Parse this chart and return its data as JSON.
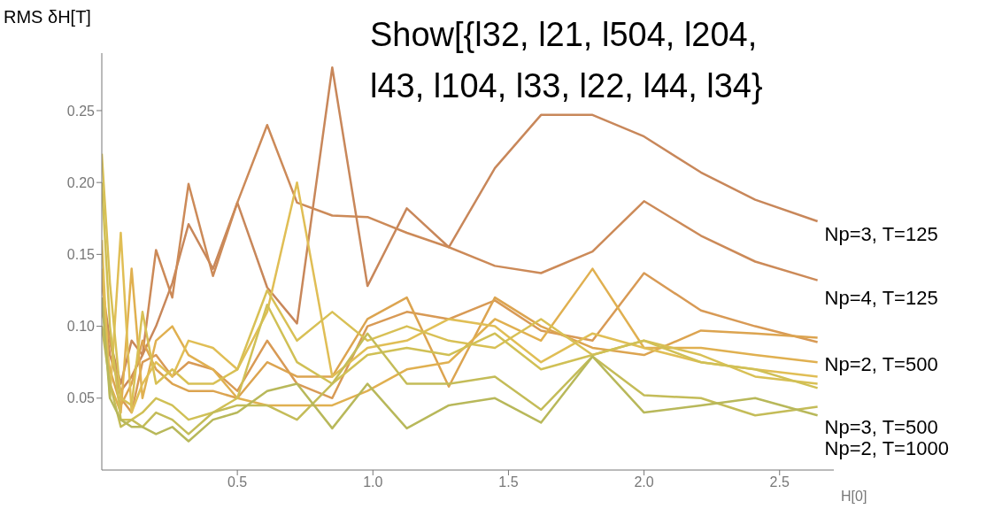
{
  "chart_data": {
    "type": "line",
    "title": "Show[{l32, l21, l504, l204,\nl43, l104, l33, l22, l44, l34}",
    "ylabel": "RMS δH[T]",
    "xlabel": "H[0]",
    "x": [
      0,
      0.03,
      0.07,
      0.11,
      0.15,
      0.2,
      0.26,
      0.32,
      0.41,
      0.5,
      0.61,
      0.72,
      0.85,
      0.98,
      1.125,
      1.28,
      1.45,
      1.62,
      1.81,
      2.0,
      2.21,
      2.41,
      2.64
    ],
    "series": [
      {
        "name": "Np=3, T=125",
        "color": "#c8875a",
        "values": [
          0.13,
          0.09,
          0.06,
          0.09,
          0.08,
          0.1,
          0.13,
          0.171,
          0.14,
          0.186,
          0.127,
          0.102,
          0.28,
          0.128,
          0.182,
          0.155,
          0.21,
          0.247,
          0.247,
          0.232,
          0.207,
          0.188,
          0.173
        ]
      },
      {
        "name": "Np=4, T=125",
        "color": "#cc8a58",
        "values": [
          0.12,
          0.08,
          0.055,
          0.065,
          0.08,
          0.153,
          0.12,
          0.199,
          0.135,
          0.186,
          0.24,
          0.186,
          0.177,
          0.176,
          0.165,
          0.155,
          0.142,
          0.137,
          0.152,
          0.187,
          0.163,
          0.145,
          0.132
        ]
      },
      {
        "name": "Np=2, T=500",
        "color": "#d89a55",
        "values": [
          0.11,
          0.09,
          0.05,
          0.04,
          0.075,
          0.08,
          0.065,
          0.075,
          0.07,
          0.055,
          0.09,
          0.06,
          0.05,
          0.1,
          0.11,
          0.105,
          0.118,
          0.097,
          0.09,
          0.137,
          0.111,
          0.1,
          0.089
        ]
      },
      {
        "color": "#dca450",
        "values": [
          0.1,
          0.07,
          0.045,
          0.06,
          0.09,
          0.07,
          0.06,
          0.055,
          0.055,
          0.05,
          0.075,
          0.065,
          0.065,
          0.105,
          0.12,
          0.058,
          0.12,
          0.1,
          0.085,
          0.08,
          0.097,
          0.095,
          0.092
        ]
      },
      {
        "color": "#e0b050",
        "values": [
          0.14,
          0.06,
          0.04,
          0.14,
          0.05,
          0.09,
          0.1,
          0.08,
          0.07,
          0.05,
          0.045,
          0.045,
          0.045,
          0.055,
          0.07,
          0.075,
          0.105,
          0.09,
          0.14,
          0.085,
          0.085,
          0.08,
          0.075
        ]
      },
      {
        "color": "#e0be55",
        "values": [
          0.16,
          0.05,
          0.165,
          0.04,
          0.06,
          0.075,
          0.065,
          0.09,
          0.085,
          0.07,
          0.11,
          0.2,
          0.065,
          0.085,
          0.09,
          0.105,
          0.1,
          0.075,
          0.095,
          0.085,
          0.075,
          0.07,
          0.065
        ]
      },
      {
        "color": "#d8c055",
        "values": [
          0.22,
          0.13,
          0.05,
          0.045,
          0.11,
          0.06,
          0.07,
          0.06,
          0.06,
          0.07,
          0.125,
          0.09,
          0.11,
          0.09,
          0.1,
          0.09,
          0.085,
          0.105,
          0.08,
          0.09,
          0.08,
          0.065,
          0.06
        ]
      },
      {
        "color": "#d0c055",
        "values": [
          0.2,
          0.1,
          0.035,
          0.035,
          0.04,
          0.05,
          0.045,
          0.035,
          0.04,
          0.05,
          0.115,
          0.075,
          0.06,
          0.08,
          0.085,
          0.08,
          0.095,
          0.07,
          0.08,
          0.09,
          0.075,
          0.07,
          0.057
        ]
      },
      {
        "name": "Np=3, T=500",
        "color": "#c4bc58",
        "values": [
          0.1,
          0.06,
          0.03,
          0.035,
          0.03,
          0.04,
          0.035,
          0.025,
          0.04,
          0.045,
          0.045,
          0.035,
          0.06,
          0.095,
          0.06,
          0.06,
          0.065,
          0.042,
          0.079,
          0.052,
          0.05,
          0.038,
          0.044
        ]
      },
      {
        "name": "Np=2, T=1000",
        "color": "#b8b85a",
        "values": [
          0.12,
          0.05,
          0.035,
          0.03,
          0.03,
          0.025,
          0.03,
          0.02,
          0.035,
          0.04,
          0.055,
          0.06,
          0.029,
          0.06,
          0.029,
          0.045,
          0.05,
          0.033,
          0.079,
          0.04,
          0.045,
          0.05,
          0.038
        ]
      }
    ],
    "xlim": [
      0,
      2.7
    ],
    "xticks": [
      0.5,
      {
        "value": 1,
        "label": "1.0"
      },
      1.5,
      {
        "value": 2,
        "label": "2.0"
      },
      2.5
    ],
    "ylim": [
      0,
      0.29
    ],
    "yticks": [
      0.05,
      {
        "value": 0.1,
        "label": "0.10"
      },
      0.15,
      {
        "value": 0.2,
        "label": "0.20"
      },
      0.25
    ],
    "grid": false,
    "legend": false,
    "marker": "none",
    "line_style": "solid"
  }
}
